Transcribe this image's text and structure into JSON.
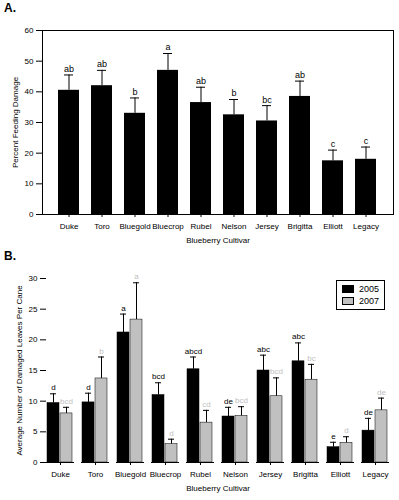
{
  "chart_data": [
    {
      "type": "bar",
      "title": "A.",
      "x_label": "Blueberry Cultivar",
      "y_label": "Percent Feeding Damage",
      "categories": [
        "Duke",
        "Toro",
        "Bluegold",
        "Bluecrop",
        "Rubel",
        "Nelson",
        "Jersey",
        "Brigitta",
        "Elliott",
        "Legacy"
      ],
      "values": [
        40.5,
        42,
        33,
        47,
        36.5,
        32.5,
        30.5,
        38.5,
        17.5,
        18
      ],
      "errors": [
        5,
        5,
        5,
        5.5,
        5,
        5,
        5,
        5,
        3.5,
        4
      ],
      "letters": [
        "ab",
        "ab",
        "b",
        "a",
        "ab",
        "b",
        "bc",
        "ab",
        "c",
        "c"
      ],
      "color": "#000000",
      "ylim": [
        0,
        60
      ],
      "yticks": [
        0,
        10,
        20,
        30,
        40,
        50,
        60
      ]
    },
    {
      "type": "bar",
      "title": "B.",
      "x_label": "Blueberry Cultivar",
      "y_label": "Average Number of Damaged Leaves Per Cane",
      "categories": [
        "Duke",
        "Toro",
        "Bluegold",
        "Bluecrop",
        "Rubel",
        "Nelson",
        "Jersey",
        "Brigitta",
        "Elliott",
        "Legacy"
      ],
      "series": [
        {
          "name": "2005",
          "color": "#000000",
          "values": [
            9.7,
            9.8,
            21.2,
            11,
            15.2,
            7.5,
            15,
            16.5,
            2.5,
            5.2
          ],
          "errors": [
            1.5,
            1.5,
            3,
            2,
            2,
            1.5,
            2.5,
            3,
            0.8,
            2
          ],
          "letters": [
            "d",
            "d",
            "a",
            "bcd",
            "abcd",
            "de",
            "abc",
            "abc",
            "e",
            "de"
          ]
        },
        {
          "name": "2007",
          "color": "#c0c0c0",
          "values": [
            8,
            13.7,
            23.3,
            3,
            6.5,
            7.6,
            10.8,
            13.5,
            3.2,
            8.5
          ],
          "errors": [
            1,
            3.5,
            6,
            0.8,
            2,
            1.5,
            3,
            2.5,
            1,
            2
          ],
          "letters": [
            "bcd",
            "b",
            "a",
            "d",
            "cd",
            "bcd",
            "bcd",
            "bc",
            "d",
            "de"
          ]
        }
      ],
      "ylim": [
        0,
        30
      ],
      "yticks": [
        0,
        5,
        10,
        15,
        20,
        25,
        30
      ],
      "legend": "top-right"
    }
  ]
}
